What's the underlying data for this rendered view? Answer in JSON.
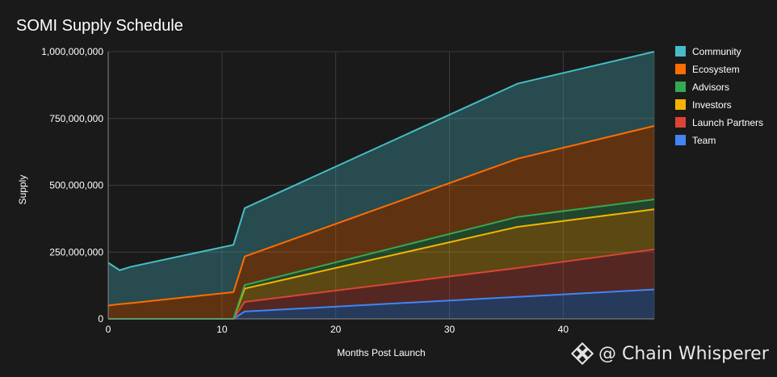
{
  "chart_data": {
    "type": "area",
    "stacked": true,
    "title": "SOMI Supply Schedule",
    "xlabel": "Months Post Launch",
    "ylabel": "Supply",
    "xlim": [
      0,
      48
    ],
    "ylim": [
      0,
      1000000000
    ],
    "x_ticks": [
      0,
      10,
      20,
      30,
      40
    ],
    "x_tick_labels": [
      "0",
      "10",
      "20",
      "30",
      "40"
    ],
    "y_ticks": [
      0,
      250000000,
      500000000,
      750000000,
      1000000000
    ],
    "y_tick_labels": [
      "0",
      "250,000,000",
      "500,000,000",
      "750,000,000",
      "1,000,000,000"
    ],
    "grid": true,
    "legend_position": "right",
    "x": [
      0,
      1,
      2,
      11,
      11.01,
      12,
      36,
      48
    ],
    "series": [
      {
        "name": "Team",
        "color": "#4285f4",
        "values": [
          0,
          0,
          0,
          0,
          0,
          27500000,
          82500000,
          110000000
        ]
      },
      {
        "name": "Launch Partners",
        "color": "#db4437",
        "values": [
          0,
          0,
          0,
          0,
          0,
          36000000,
          108000000,
          150000000
        ]
      },
      {
        "name": "Investors",
        "color": "#f4b400",
        "values": [
          0,
          0,
          0,
          0,
          0,
          50000000,
          154000000,
          150000000
        ]
      },
      {
        "name": "Advisors",
        "color": "#34a853",
        "values": [
          0,
          0,
          0,
          0,
          0,
          13000000,
          37000000,
          37000000
        ]
      },
      {
        "name": "Ecosystem",
        "color": "#ff6d01",
        "values": [
          50000000,
          55000000,
          59000000,
          100000000,
          100000000,
          107000000,
          218000000,
          275000000
        ]
      },
      {
        "name": "Community",
        "color": "#46bdc6",
        "values": [
          160000000,
          127000000,
          136000000,
          177000000,
          177000000,
          181000000,
          281000000,
          278000000
        ]
      }
    ],
    "legend_order": [
      "Community",
      "Ecosystem",
      "Advisors",
      "Investors",
      "Launch Partners",
      "Team"
    ]
  },
  "watermark": {
    "text": "@ Chain Whisperer",
    "logo_icon": "binance-diamond-icon"
  }
}
